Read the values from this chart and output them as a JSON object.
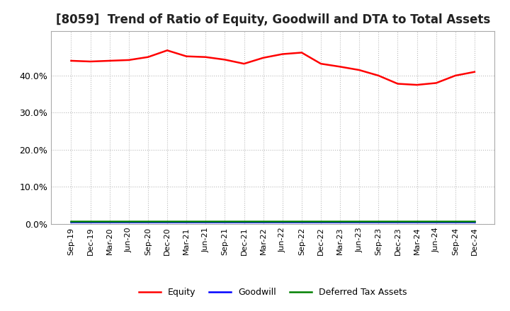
{
  "title": "[8059]  Trend of Ratio of Equity, Goodwill and DTA to Total Assets",
  "title_fontsize": 12,
  "ylim": [
    0.0,
    0.52
  ],
  "yticks": [
    0.0,
    0.1,
    0.2,
    0.3,
    0.4
  ],
  "yticklabels": [
    "0.0%",
    "10.0%",
    "20.0%",
    "30.0%",
    "40.0%"
  ],
  "background_color": "#ffffff",
  "grid_color": "#bbbbbb",
  "x_labels": [
    "Sep-19",
    "Dec-19",
    "Mar-20",
    "Jun-20",
    "Sep-20",
    "Dec-20",
    "Mar-21",
    "Jun-21",
    "Sep-21",
    "Dec-21",
    "Mar-22",
    "Jun-22",
    "Sep-22",
    "Dec-22",
    "Mar-23",
    "Jun-23",
    "Sep-23",
    "Dec-23",
    "Mar-24",
    "Jun-24",
    "Sep-24",
    "Dec-24"
  ],
  "equity": [
    0.44,
    0.438,
    0.44,
    0.442,
    0.45,
    0.468,
    0.452,
    0.45,
    0.443,
    0.432,
    0.448,
    0.458,
    0.462,
    0.432,
    0.424,
    0.415,
    0.4,
    0.378,
    0.375,
    0.38,
    0.4,
    0.41
  ],
  "goodwill": [
    0.005,
    0.005,
    0.005,
    0.005,
    0.005,
    0.005,
    0.005,
    0.005,
    0.005,
    0.005,
    0.005,
    0.005,
    0.005,
    0.005,
    0.005,
    0.005,
    0.005,
    0.005,
    0.005,
    0.005,
    0.005,
    0.005
  ],
  "dta": [
    0.008,
    0.008,
    0.008,
    0.008,
    0.008,
    0.008,
    0.008,
    0.008,
    0.008,
    0.008,
    0.008,
    0.008,
    0.008,
    0.008,
    0.008,
    0.008,
    0.008,
    0.008,
    0.008,
    0.008,
    0.008,
    0.008
  ],
  "equity_color": "#ff0000",
  "goodwill_color": "#0000ff",
  "dta_color": "#008000",
  "legend_labels": [
    "Equity",
    "Goodwill",
    "Deferred Tax Assets"
  ]
}
